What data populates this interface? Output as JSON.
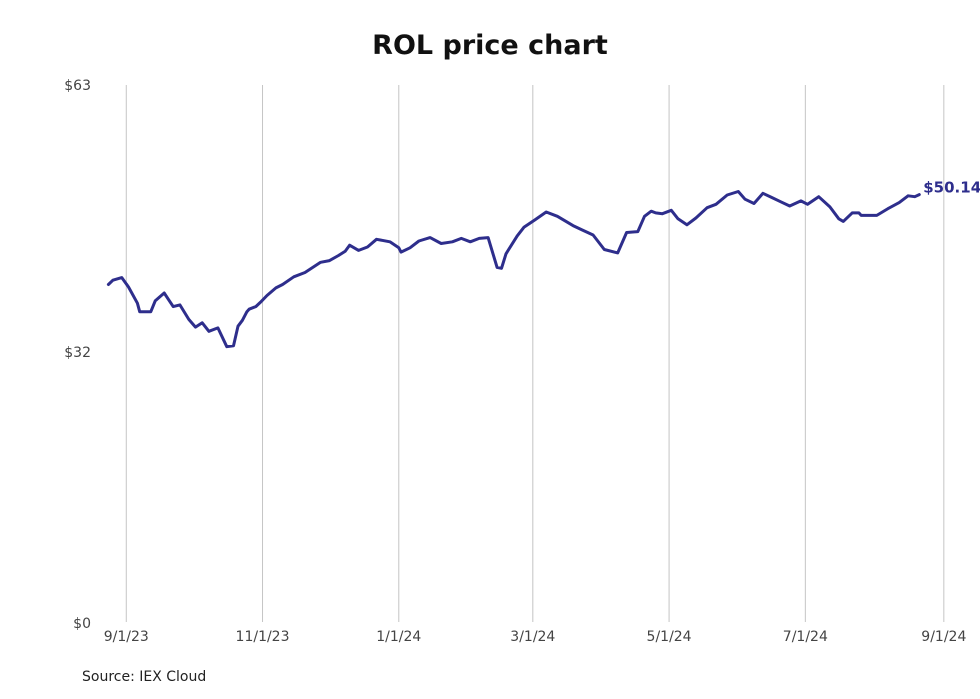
{
  "colors": {
    "line": "#2e2e8c",
    "grid": "#c4c4c4",
    "text": "#444444"
  },
  "chart_data": {
    "type": "line",
    "title": "ROL price chart",
    "xlabel": "",
    "ylabel": "",
    "x_ticks": [
      "9/1/23",
      "11/1/23",
      "1/1/24",
      "3/1/24",
      "5/1/24",
      "7/1/24",
      "9/1/24"
    ],
    "y_ticks": [
      "$0",
      "$32",
      "$63"
    ],
    "ylim": [
      0,
      63
    ],
    "xlim": [
      "2023-08-18",
      "2024-09-06"
    ],
    "grid": "vertical",
    "last_value_label": "$50.14",
    "series": [
      {
        "x": [
          "2023-08-24",
          "2023-08-26",
          "2023-08-30",
          "2023-09-02",
          "2023-09-06",
          "2023-09-07",
          "2023-09-12",
          "2023-09-14",
          "2023-09-18",
          "2023-09-20",
          "2023-09-22",
          "2023-09-25",
          "2023-09-29",
          "2023-10-02",
          "2023-10-05",
          "2023-10-08",
          "2023-10-12",
          "2023-10-16",
          "2023-10-19",
          "2023-10-21",
          "2023-10-23",
          "2023-10-25",
          "2023-10-26",
          "2023-10-29",
          "2023-10-31",
          "2023-11-03",
          "2023-11-07",
          "2023-11-10",
          "2023-11-15",
          "2023-11-20",
          "2023-11-27",
          "2023-12-01",
          "2023-12-05",
          "2023-12-08",
          "2023-12-10",
          "2023-12-14",
          "2023-12-18",
          "2023-12-22",
          "2023-12-28",
          "2024-01-01",
          "2024-01-02",
          "2024-01-06",
          "2024-01-10",
          "2024-01-15",
          "2024-01-20",
          "2024-01-25",
          "2024-01-29",
          "2024-02-02",
          "2024-02-06",
          "2024-02-10",
          "2024-02-14",
          "2024-02-16",
          "2024-02-18",
          "2024-02-23",
          "2024-02-26",
          "2024-03-02",
          "2024-03-07",
          "2024-03-12",
          "2024-03-19",
          "2024-03-23",
          "2024-03-28",
          "2024-04-02",
          "2024-04-08",
          "2024-04-12",
          "2024-04-17",
          "2024-04-20",
          "2024-04-23",
          "2024-04-25",
          "2024-04-28",
          "2024-05-02",
          "2024-05-05",
          "2024-05-09",
          "2024-05-13",
          "2024-05-18",
          "2024-05-22",
          "2024-05-27",
          "2024-06-01",
          "2024-06-04",
          "2024-06-08",
          "2024-06-12",
          "2024-06-16",
          "2024-06-20",
          "2024-06-24",
          "2024-06-29",
          "2024-07-02",
          "2024-07-07",
          "2024-07-12",
          "2024-07-16",
          "2024-07-18",
          "2024-07-22",
          "2024-07-25",
          "2024-07-26",
          "2024-07-28",
          "2024-08-02",
          "2024-08-07",
          "2024-08-12",
          "2024-08-16",
          "2024-08-19",
          "2024-08-21"
        ],
        "values": [
          39.6,
          40.1,
          40.4,
          39.3,
          37.4,
          36.4,
          36.4,
          37.7,
          38.6,
          37.8,
          37.0,
          37.2,
          35.5,
          34.6,
          35.1,
          34.1,
          34.5,
          32.3,
          32.4,
          34.7,
          35.4,
          36.4,
          36.7,
          37.0,
          37.5,
          38.3,
          39.2,
          39.6,
          40.5,
          41.0,
          42.2,
          42.4,
          43.0,
          43.5,
          44.2,
          43.6,
          44.0,
          44.9,
          44.6,
          43.9,
          43.4,
          43.9,
          44.7,
          45.1,
          44.4,
          44.6,
          45.0,
          44.6,
          45.0,
          45.1,
          41.6,
          41.5,
          43.2,
          45.3,
          46.3,
          47.2,
          48.1,
          47.6,
          46.5,
          46.0,
          45.4,
          43.7,
          43.3,
          45.7,
          45.8,
          47.6,
          48.2,
          48.0,
          47.9,
          48.3,
          47.3,
          46.6,
          47.4,
          48.6,
          49.0,
          50.1,
          50.5,
          49.6,
          49.1,
          50.3,
          49.8,
          49.3,
          48.8,
          49.4,
          49.0,
          49.9,
          48.7,
          47.3,
          47.0,
          48.0,
          48.0,
          47.7,
          47.7,
          47.7,
          48.5,
          49.2,
          50.0,
          49.9,
          50.14
        ]
      }
    ]
  },
  "source": "Source: IEX Cloud"
}
